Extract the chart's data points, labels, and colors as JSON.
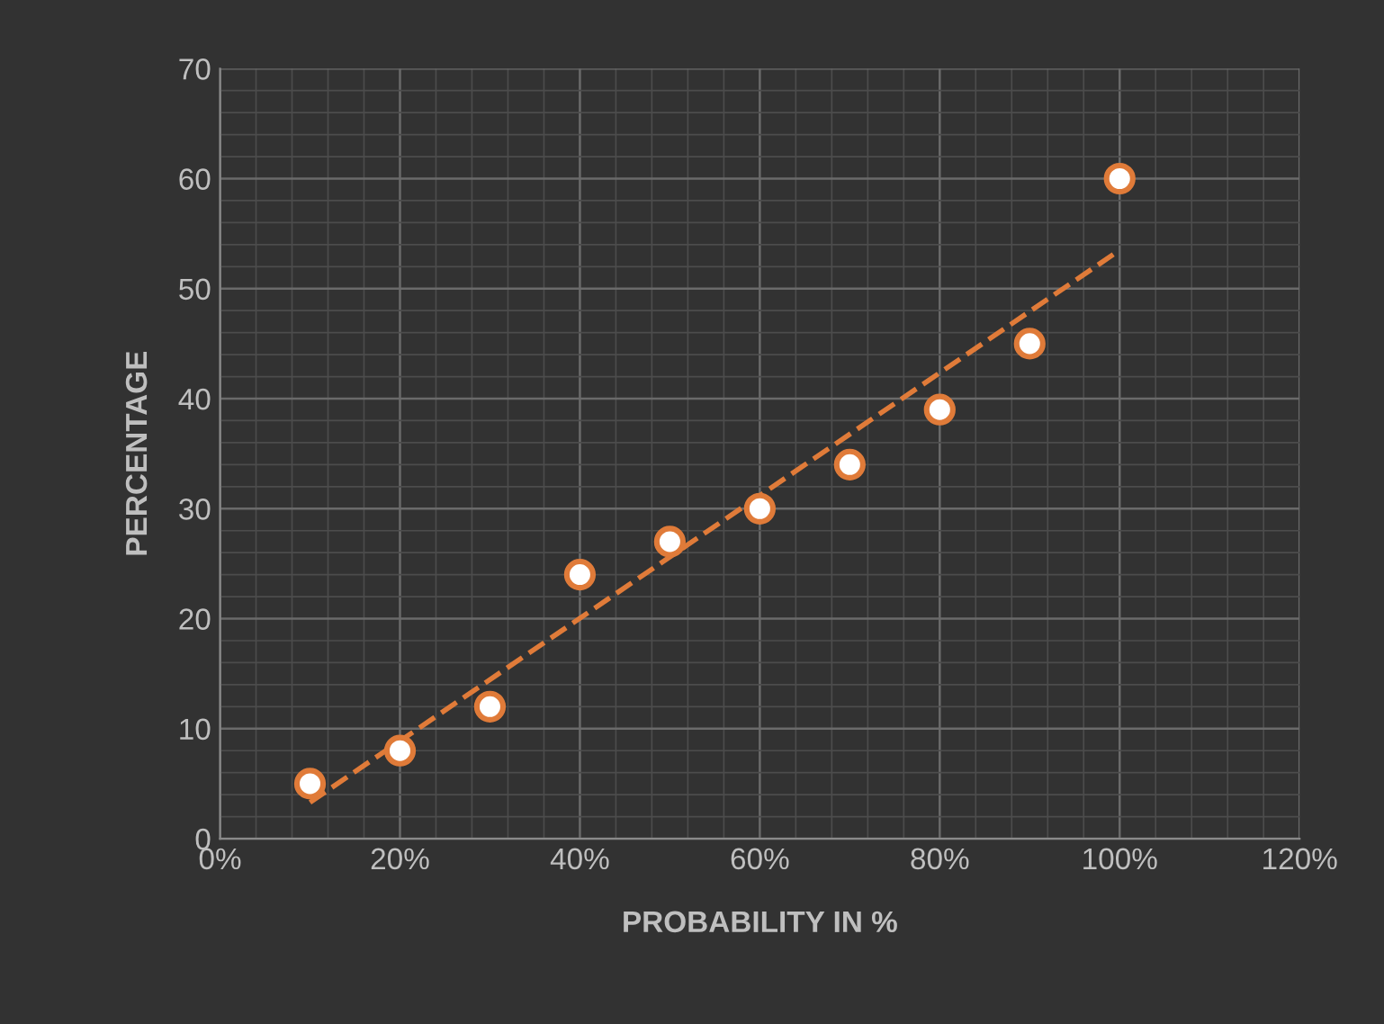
{
  "chart_data": {
    "type": "scatter",
    "xlabel": "PROBABILITY IN %",
    "ylabel": "PERCENTAGE",
    "series": [
      {
        "color": "#e07b39",
        "x": [
          10,
          20,
          30,
          40,
          50,
          60,
          70,
          80,
          90,
          100
        ],
        "values": [
          5,
          8,
          12,
          24,
          27,
          30,
          34,
          39,
          45,
          60
        ]
      },
      {
        "type": "line",
        "color": "#e07b39",
        "line_style": "dashed",
        "marker": "none",
        "x": [
          10,
          100
        ],
        "values": [
          3.3,
          53.5
        ]
      }
    ],
    "marker": "circle",
    "xlim": [
      0,
      120
    ],
    "ylim": [
      0,
      70
    ],
    "xticks": [
      {
        "value": 0,
        "label": "0%"
      },
      {
        "value": 20,
        "label": "20%"
      },
      {
        "value": 40,
        "label": "40%"
      },
      {
        "value": 60,
        "label": "60%"
      },
      {
        "value": 80,
        "label": "80%"
      },
      {
        "value": 100,
        "label": "100%"
      },
      {
        "value": 120,
        "label": "120%"
      }
    ],
    "yticks": [
      0,
      10,
      20,
      30,
      40,
      50,
      60,
      70
    ],
    "grid": true
  }
}
